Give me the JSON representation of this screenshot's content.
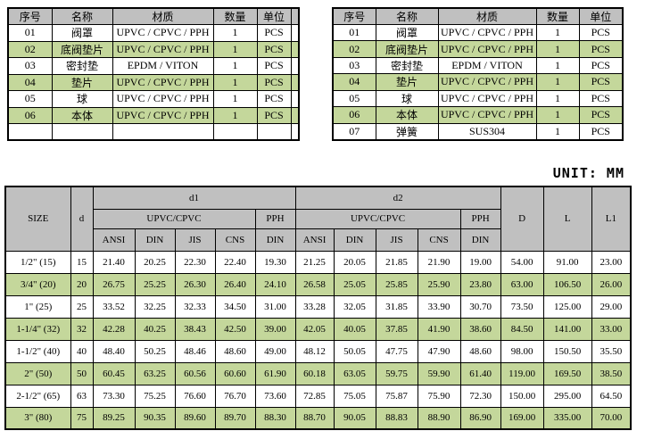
{
  "page": {
    "unit_label": "UNIT: MM"
  },
  "colors": {
    "header_bg": "#C0C0C0",
    "stripe_green": "#C4D79B",
    "border": "#000000",
    "background": "#FFFFFF"
  },
  "parts_list_left": {
    "headers": {
      "no": "序号",
      "name": "名称",
      "material": "材质",
      "qty": "数量",
      "unit": "单位"
    },
    "rows": [
      [
        "01",
        "阀罩",
        "UPVC / CPVC / PPH",
        "1",
        "PCS"
      ],
      [
        "02",
        "底阀垫片",
        "UPVC / CPVC / PPH",
        "1",
        "PCS"
      ],
      [
        "03",
        "密封垫",
        "EPDM / VITON",
        "1",
        "PCS"
      ],
      [
        "04",
        "垫片",
        "UPVC / CPVC / PPH",
        "1",
        "PCS"
      ],
      [
        "05",
        "球",
        "UPVC / CPVC / PPH",
        "1",
        "PCS"
      ],
      [
        "06",
        "本体",
        "UPVC / CPVC / PPH",
        "1",
        "PCS"
      ],
      [
        "",
        "",
        "",
        "",
        ""
      ]
    ]
  },
  "parts_list_right": {
    "headers": {
      "no": "序号",
      "name": "名称",
      "material": "材质",
      "qty": "数量",
      "unit": "单位"
    },
    "rows": [
      [
        "01",
        "阀罩",
        "UPVC / CPVC / PPH",
        "1",
        "PCS"
      ],
      [
        "02",
        "底阀垫片",
        "UPVC / CPVC / PPH",
        "1",
        "PCS"
      ],
      [
        "03",
        "密封垫",
        "EPDM / VITON",
        "1",
        "PCS"
      ],
      [
        "04",
        "垫片",
        "UPVC / CPVC / PPH",
        "1",
        "PCS"
      ],
      [
        "05",
        "球",
        "UPVC / CPVC / PPH",
        "1",
        "PCS"
      ],
      [
        "06",
        "本体",
        "UPVC / CPVC / PPH",
        "1",
        "PCS"
      ],
      [
        "07",
        "弹簧",
        "SUS304",
        "1",
        "PCS"
      ]
    ]
  },
  "dimension_table": {
    "header": {
      "size": "SIZE",
      "d": "d",
      "d1": "d1",
      "d2": "d2",
      "upvc_cpvc": "UPVC/CPVC",
      "pph": "PPH",
      "standards": [
        "ANSI",
        "DIN",
        "JIS",
        "CNS",
        "DIN"
      ],
      "D": "D",
      "L": "L",
      "L1": "L1"
    },
    "rows": [
      [
        "1/2\" (15)",
        "15",
        "21.40",
        "20.25",
        "22.30",
        "22.40",
        "19.30",
        "21.25",
        "20.05",
        "21.85",
        "21.90",
        "19.00",
        "54.00",
        "91.00",
        "23.00"
      ],
      [
        "3/4\" (20)",
        "20",
        "26.75",
        "25.25",
        "26.30",
        "26.40",
        "24.10",
        "26.58",
        "25.05",
        "25.85",
        "25.90",
        "23.80",
        "63.00",
        "106.50",
        "26.00"
      ],
      [
        "1\" (25)",
        "25",
        "33.52",
        "32.25",
        "32.33",
        "34.50",
        "31.00",
        "33.28",
        "32.05",
        "31.85",
        "33.90",
        "30.70",
        "73.50",
        "125.00",
        "29.00"
      ],
      [
        "1-1/4\" (32)",
        "32",
        "42.28",
        "40.25",
        "38.43",
        "42.50",
        "39.00",
        "42.05",
        "40.05",
        "37.85",
        "41.90",
        "38.60",
        "84.50",
        "141.00",
        "33.00"
      ],
      [
        "1-1/2\" (40)",
        "40",
        "48.40",
        "50.25",
        "48.46",
        "48.60",
        "49.00",
        "48.12",
        "50.05",
        "47.75",
        "47.90",
        "48.60",
        "98.00",
        "150.50",
        "35.50"
      ],
      [
        "2\" (50)",
        "50",
        "60.45",
        "63.25",
        "60.56",
        "60.60",
        "61.90",
        "60.18",
        "63.05",
        "59.75",
        "59.90",
        "61.40",
        "119.00",
        "169.50",
        "38.50"
      ],
      [
        "2-1/2\" (65)",
        "63",
        "73.30",
        "75.25",
        "76.60",
        "76.70",
        "73.60",
        "72.85",
        "75.05",
        "75.87",
        "75.90",
        "72.30",
        "150.00",
        "295.00",
        "64.50"
      ],
      [
        "3\" (80)",
        "75",
        "89.25",
        "90.35",
        "89.60",
        "89.70",
        "88.30",
        "88.70",
        "90.05",
        "88.83",
        "88.90",
        "86.90",
        "169.00",
        "335.00",
        "70.00"
      ]
    ]
  }
}
